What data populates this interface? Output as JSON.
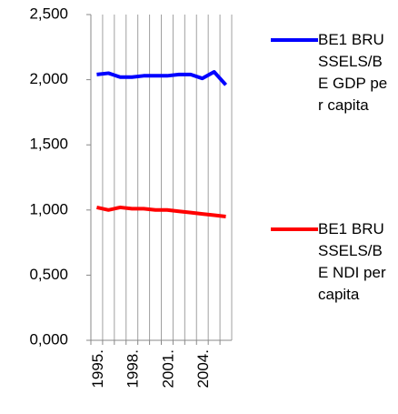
{
  "chart_data": {
    "type": "line",
    "categories": [
      "1995.",
      null,
      null,
      "1998.",
      null,
      null,
      "2001.",
      null,
      null,
      "2004.",
      null,
      null
    ],
    "series": [
      {
        "name": "BE1 BRUSSELS/BE GDP per capita",
        "color": "#0000ff",
        "values": [
          2.04,
          2.05,
          2.02,
          2.02,
          2.03,
          2.03,
          2.03,
          2.04,
          2.04,
          2.01,
          2.06,
          1.96
        ]
      },
      {
        "name": "BE1 BRUSSELS/BE NDI per capita",
        "color": "#ff0000",
        "values": [
          1.02,
          1.0,
          1.02,
          1.01,
          1.01,
          1.0,
          1.0,
          0.99,
          0.98,
          0.97,
          0.96,
          0.95
        ]
      }
    ],
    "ylim": [
      0,
      2.5
    ],
    "yticks": [
      {
        "value": 0,
        "label": "0,000"
      },
      {
        "value": 0.5,
        "label": "0,500"
      },
      {
        "value": 1,
        "label": "1,000"
      },
      {
        "value": 1.5,
        "label": "1,500"
      },
      {
        "value": 2,
        "label": "2,000"
      },
      {
        "value": 2.5,
        "label": "2,500"
      }
    ],
    "grid": true,
    "legend": "right"
  }
}
